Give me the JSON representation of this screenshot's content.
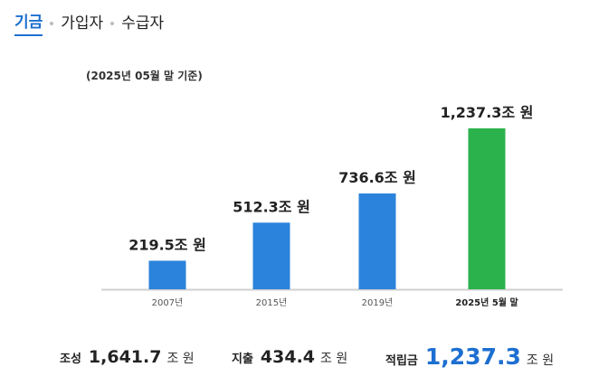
{
  "tabs": [
    {
      "label": "기금",
      "active": true
    },
    {
      "label": "가입자",
      "active": false
    },
    {
      "label": "수급자",
      "active": false
    }
  ],
  "basis_note": "(2025년 05월 말 기준)",
  "colors": {
    "bar_default": "#2b83db",
    "bar_highlight": "#2bb24c",
    "accent": "#1d6fd1",
    "axis": "#cfcfcf"
  },
  "chart_data": {
    "type": "bar",
    "unit": "조 원",
    "categories": [
      "2007년",
      "2015년",
      "2019년",
      "2025년 5월 말"
    ],
    "values": [
      219.5,
      512.3,
      736.6,
      1237.3
    ],
    "value_labels": [
      "219.5조 원",
      "512.3조 원",
      "736.6조 원",
      "1,237.3조 원"
    ],
    "highlight_index": 3,
    "ylim": [
      0,
      1237.3
    ],
    "grid": false,
    "legend": "none"
  },
  "summary": {
    "formation": {
      "label": "조성",
      "value": "1,641.7",
      "unit": "조 원"
    },
    "expenditure": {
      "label": "지출",
      "value": "434.4",
      "unit": "조 원"
    },
    "reserve": {
      "label": "적립금",
      "value": "1,237.3",
      "unit": "조 원"
    }
  }
}
